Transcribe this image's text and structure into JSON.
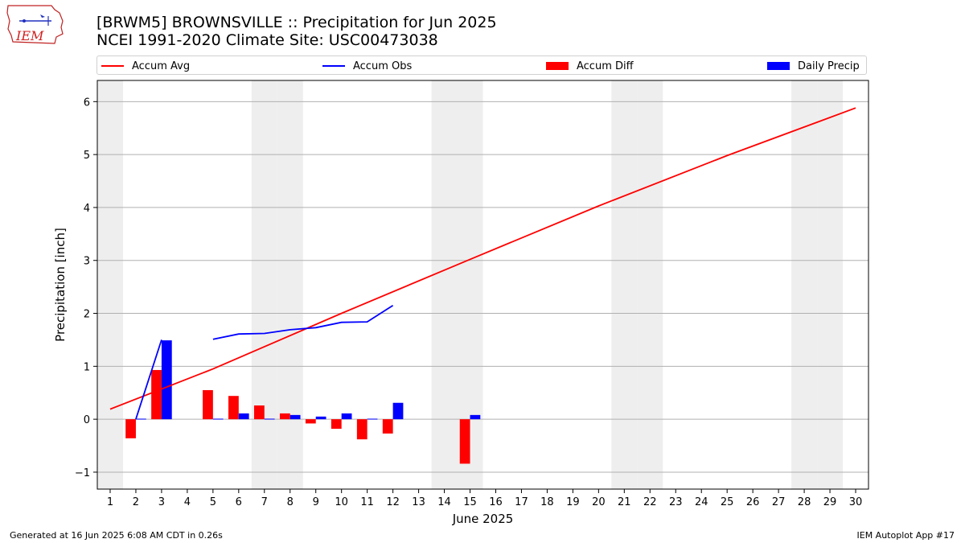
{
  "header": {
    "title_line1": "[BRWM5] BROWNSVILLE :: Precipitation for Jun 2025",
    "title_line2": "NCEI 1991-2020 Climate Site: USC00473038"
  },
  "logo": {
    "text": "IEM",
    "icon": "iem-iowa-map-logo"
  },
  "footer": {
    "left": "Generated at 16 Jun 2025 6:08 AM CDT in 0.26s",
    "right": "IEM Autoplot App #17"
  },
  "colors": {
    "accum_avg": "#ff0000",
    "accum_obs": "#0000ff",
    "accum_diff": "#ff0000",
    "daily_precip": "#0000ff",
    "weekend_shade": "#eeeeee",
    "grid": "#b0b0b0"
  },
  "chart_data": {
    "type": "bar",
    "title": "[BRWM5] BROWNSVILLE :: Precipitation for Jun 2025",
    "subtitle": "NCEI 1991-2020 Climate Site: USC00473038",
    "xlabel": "June 2025",
    "ylabel": "Precipitation [inch]",
    "xlim": [
      0.5,
      30.5
    ],
    "ylim": [
      -1.32,
      6.4
    ],
    "x_ticks": [
      1,
      2,
      3,
      4,
      5,
      6,
      7,
      8,
      9,
      10,
      11,
      12,
      13,
      14,
      15,
      16,
      17,
      18,
      19,
      20,
      21,
      22,
      23,
      24,
      25,
      26,
      27,
      28,
      29,
      30
    ],
    "y_ticks": [
      -1,
      0,
      1,
      2,
      3,
      4,
      5,
      6
    ],
    "grid": "horizontal",
    "legend_position": "top",
    "weekend_days": [
      1,
      7,
      8,
      14,
      15,
      21,
      22,
      28,
      29
    ],
    "legend": [
      "Accum Avg",
      "Accum Obs",
      "Accum Diff",
      "Daily Precip"
    ],
    "series": [
      {
        "name": "Accum Avg",
        "kind": "line",
        "x": [
          1,
          5,
          10,
          15,
          20,
          25,
          30
        ],
        "values": [
          0.19,
          0.95,
          2.0,
          3.02,
          4.03,
          4.98,
          5.88
        ]
      },
      {
        "name": "Accum Obs",
        "kind": "line",
        "x": [
          2,
          3,
          4,
          5,
          6,
          7,
          8,
          9,
          10,
          11,
          12
        ],
        "values": [
          0.0,
          1.5,
          null,
          1.51,
          1.61,
          1.62,
          1.69,
          1.73,
          1.83,
          1.84,
          2.15
        ]
      },
      {
        "name": "Accum Diff",
        "kind": "bar",
        "x": [
          2,
          3,
          5,
          6,
          7,
          8,
          9,
          10,
          11,
          12,
          15
        ],
        "values": [
          -0.36,
          0.93,
          0.55,
          0.44,
          0.26,
          0.11,
          -0.08,
          -0.18,
          -0.38,
          -0.27,
          -0.84
        ]
      },
      {
        "name": "Daily Precip",
        "kind": "bar",
        "x": [
          2,
          3,
          5,
          6,
          7,
          8,
          9,
          10,
          11,
          12,
          15
        ],
        "values": [
          0.01,
          1.49,
          0.01,
          0.11,
          0.01,
          0.08,
          0.05,
          0.11,
          0.01,
          0.31,
          0.08
        ]
      }
    ]
  }
}
